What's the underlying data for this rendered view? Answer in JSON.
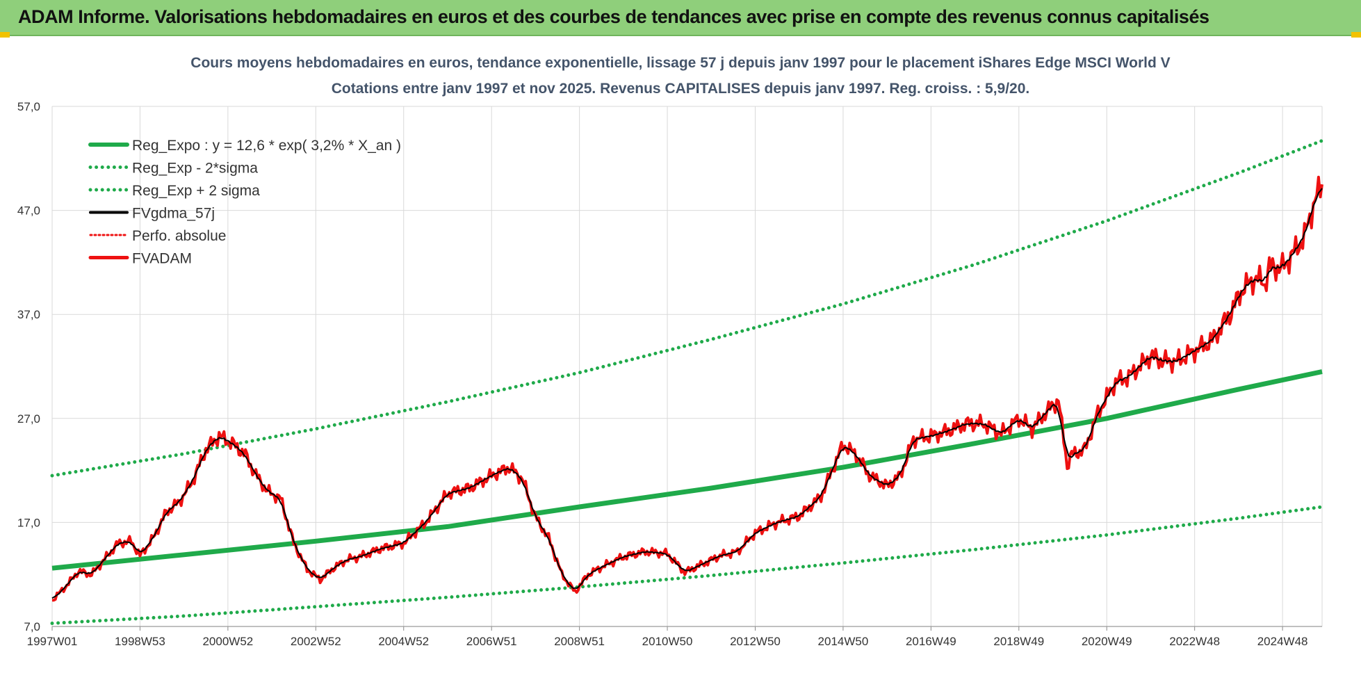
{
  "header": {
    "title": "ADAM Informe. Valorisations hebdomadaires en euros et des courbes de tendances avec prise en compte des revenus connus capitalisés"
  },
  "colors": {
    "header_bg": "#8fcf7b",
    "reg_green": "#1faa4a",
    "fv_red": "#ee1111",
    "ma_black": "#000000",
    "title_blue": "#44546a"
  },
  "chart_data": {
    "type": "line",
    "title_line1": "Cours moyens hebdomadaires en euros, tendance exponentielle, lissage 57 j depuis janv 1997 pour le placement iShares Edge MSCI World V",
    "title_line2": "Cotations entre janv 1997 et nov 2025. Revenus CAPITALISES depuis janv 1997. Reg. croiss. : 5,9/20.",
    "xlabel": "",
    "ylabel": "",
    "xlim": [
      1997.0,
      2025.9
    ],
    "ylim": [
      7.0,
      57.0
    ],
    "y_ticks": [
      "7,0",
      "17,0",
      "27,0",
      "37,0",
      "47,0",
      "57,0"
    ],
    "y_tick_values": [
      7,
      17,
      27,
      37,
      47,
      57
    ],
    "x_ticks": [
      "1997W01",
      "1998W53",
      "2000W52",
      "2002W52",
      "2004W52",
      "2006W51",
      "2008W51",
      "2010W50",
      "2012W50",
      "2014W50",
      "2016W49",
      "2018W49",
      "2020W49",
      "2022W48",
      "2024W48"
    ],
    "x_tick_values": [
      1997.0,
      1999.0,
      2001.0,
      2003.0,
      2005.0,
      2007.0,
      2009.0,
      2011.0,
      2013.0,
      2015.0,
      2017.0,
      2019.0,
      2021.0,
      2023.0,
      2025.0
    ],
    "grid": true,
    "legend_position": "top-left",
    "series": [
      {
        "name": "Reg_Expo : y = 12,6 * exp( 3,2% *  X_an )",
        "style": "solid-thick",
        "color": "#1faa4a",
        "x": [
          1997,
          2000,
          2003,
          2006,
          2009,
          2012,
          2015,
          2018,
          2021,
          2024,
          2025.9
        ],
        "values": [
          12.6,
          13.9,
          15.2,
          16.6,
          18.5,
          20.3,
          22.3,
          24.6,
          27.0,
          29.8,
          31.5
        ]
      },
      {
        "name": "Reg_Exp - 2*sigma",
        "style": "dotted",
        "color": "#1faa4a",
        "x": [
          1997,
          2000,
          2003,
          2006,
          2009,
          2012,
          2015,
          2018,
          2021,
          2024,
          2025.9
        ],
        "values": [
          7.3,
          8.0,
          8.9,
          9.8,
          10.8,
          11.9,
          13.1,
          14.4,
          15.8,
          17.4,
          18.5
        ]
      },
      {
        "name": "Reg_Exp + 2 sigma",
        "style": "dotted",
        "color": "#1faa4a",
        "x": [
          1997,
          2000,
          2003,
          2006,
          2009,
          2012,
          2015,
          2018,
          2021,
          2024,
          2025.9
        ],
        "values": [
          21.5,
          23.6,
          26.0,
          28.6,
          31.4,
          34.6,
          38.0,
          41.8,
          46.0,
          50.6,
          53.7
        ]
      },
      {
        "name": "FVgdma_57j",
        "style": "solid",
        "color": "#000000",
        "smoothed_from": "FVADAM"
      },
      {
        "name": "Perfo. absolue",
        "style": "dotted-red",
        "color": "#ee1111",
        "hidden_under": "FVADAM"
      },
      {
        "name": "FVADAM",
        "style": "solid-red",
        "color": "#ee1111",
        "x": [
          1997.0,
          1997.3,
          1997.6,
          1997.9,
          1998.2,
          1998.5,
          1998.8,
          1999.0,
          1999.3,
          1999.6,
          1999.9,
          2000.2,
          2000.5,
          2000.8,
          2001.1,
          2001.4,
          2001.6,
          2001.9,
          2002.2,
          2002.5,
          2002.8,
          2003.1,
          2003.4,
          2003.7,
          2004.0,
          2004.5,
          2005.0,
          2005.5,
          2006.0,
          2006.5,
          2007.0,
          2007.4,
          2007.7,
          2008.0,
          2008.3,
          2008.6,
          2008.9,
          2009.2,
          2009.5,
          2010.0,
          2010.5,
          2011.0,
          2011.4,
          2011.8,
          2012.2,
          2012.6,
          2013.0,
          2013.5,
          2014.0,
          2014.5,
          2015.0,
          2015.3,
          2015.6,
          2016.0,
          2016.3,
          2016.6,
          2017.0,
          2017.4,
          2017.8,
          2018.2,
          2018.6,
          2019.0,
          2019.3,
          2019.6,
          2019.9,
          2020.1,
          2020.2,
          2020.5,
          2020.8,
          2021.2,
          2021.5,
          2022.0,
          2022.3,
          2022.6,
          2023.0,
          2023.4,
          2023.8,
          2024.1,
          2024.4,
          2024.6,
          2024.7,
          2025.0,
          2025.3,
          2025.5,
          2025.7,
          2025.9
        ],
        "values": [
          9.5,
          10.8,
          12.3,
          12.0,
          13.5,
          15.0,
          15.2,
          13.8,
          15.5,
          18.0,
          19.0,
          21.0,
          24.0,
          25.3,
          24.6,
          23.5,
          21.8,
          20.0,
          19.3,
          15.0,
          12.5,
          11.5,
          12.6,
          13.4,
          13.7,
          14.5,
          15.0,
          17.0,
          19.8,
          20.3,
          21.5,
          22.3,
          21.2,
          17.5,
          15.5,
          12.0,
          10.3,
          12.0,
          12.7,
          13.7,
          14.2,
          14.0,
          12.2,
          13.0,
          13.8,
          14.2,
          16.0,
          17.0,
          17.6,
          19.5,
          24.5,
          23.5,
          21.5,
          20.5,
          21.5,
          25.0,
          25.3,
          25.8,
          26.5,
          26.5,
          25.5,
          27.0,
          26.0,
          27.5,
          28.8,
          22.5,
          23.5,
          24.0,
          27.5,
          30.5,
          31.0,
          33.0,
          32.5,
          32.5,
          33.5,
          34.5,
          37.0,
          39.5,
          40.5,
          40.0,
          41.5,
          41.5,
          43.2,
          44.5,
          47.5,
          49.5
        ]
      }
    ]
  }
}
